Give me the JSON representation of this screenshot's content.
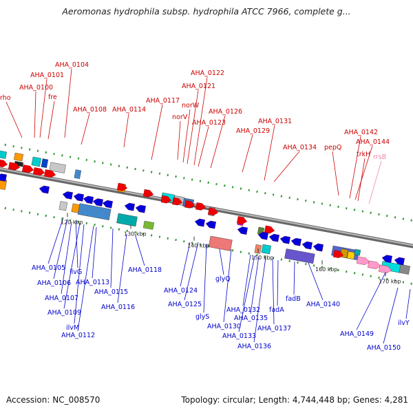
{
  "title": "Aeromonas hydrophila subsp. hydrophila ATCC 7966, complete g...",
  "footer": {
    "accession": "Accession: NC_008570",
    "topology": "Topology: circular; Length: 4,744,448 bp; Genes: 4,281"
  },
  "colors": {
    "top_label": "#cc0000",
    "bottom_label": "#0000cc",
    "rna_label": "#ee88aa",
    "backbone": "#888888",
    "forward": "#ee0000",
    "reverse": "#0000dd",
    "rrna": "#ff99cc",
    "dotted": "#339933"
  },
  "scale_ticks": [
    "120 kbp",
    "130 kbp",
    "140 kbp",
    "150 kbp",
    "160 kbp",
    "170 kbp"
  ],
  "top_labels": [
    "rho",
    "AHA_0100",
    "AHA_0101",
    "AHA_0104",
    "fre",
    "AHA_0108",
    "AHA_0114",
    "AHA_0117",
    "norV",
    "norW",
    "AHA_0121",
    "AHA_0122",
    "AHA_0123",
    "AHA_0126",
    "AHA_0129",
    "AHA_0131",
    "AHA_0134",
    "pepQ",
    "AHA_0142",
    "AHA_0144",
    "trkH",
    "rrsB"
  ],
  "bottom_labels": [
    "AHA_0105",
    "AHA_0106",
    "ilvG",
    "AHA_0107",
    "AHA_0109",
    "ilvM",
    "AHA_0112",
    "AHA_0113",
    "AHA_0115",
    "AHA_0116",
    "AHA_0118",
    "AHA_0124",
    "AHA_0125",
    "glyS",
    "glyQ",
    "AHA_0130",
    "AHA_0132",
    "AHA_0133",
    "AHA_0135",
    "AHA_0136",
    "AHA_0137",
    "fadA",
    "fadB",
    "AHA_0140",
    "AHA_0149",
    "AHA_0150",
    "ilvY"
  ]
}
